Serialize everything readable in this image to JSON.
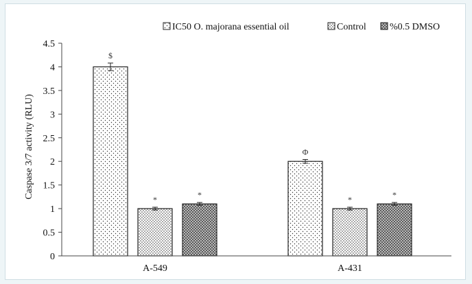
{
  "chart_data": {
    "type": "bar",
    "categories": [
      "A-549",
      "A-431"
    ],
    "series": [
      {
        "name": "IC50 O. majorana essential oil",
        "values": [
          4.0,
          2.0
        ],
        "errors": [
          0.08,
          0.04
        ],
        "annotations": [
          "$",
          "Φ"
        ],
        "pattern": "sparse-dots"
      },
      {
        "name": "Control",
        "values": [
          1.0,
          1.0
        ],
        "errors": [
          0.03,
          0.03
        ],
        "annotations": [
          "*",
          "*"
        ],
        "pattern": "medium-dots"
      },
      {
        "name": "%0.5 DMSO",
        "values": [
          1.1,
          1.1
        ],
        "errors": [
          0.03,
          0.03
        ],
        "annotations": [
          "*",
          "*"
        ],
        "pattern": "dense-dots"
      }
    ],
    "ylabel": "Caspase 3/7 activity (RLU)",
    "xlabel": "",
    "ylim": [
      0,
      4.5
    ],
    "yticks": [
      "0",
      "0.5",
      "1",
      "1.5",
      "2",
      "2.5",
      "3",
      "3.5",
      "4",
      "4.5"
    ],
    "grid": false,
    "legend_position": "top"
  }
}
